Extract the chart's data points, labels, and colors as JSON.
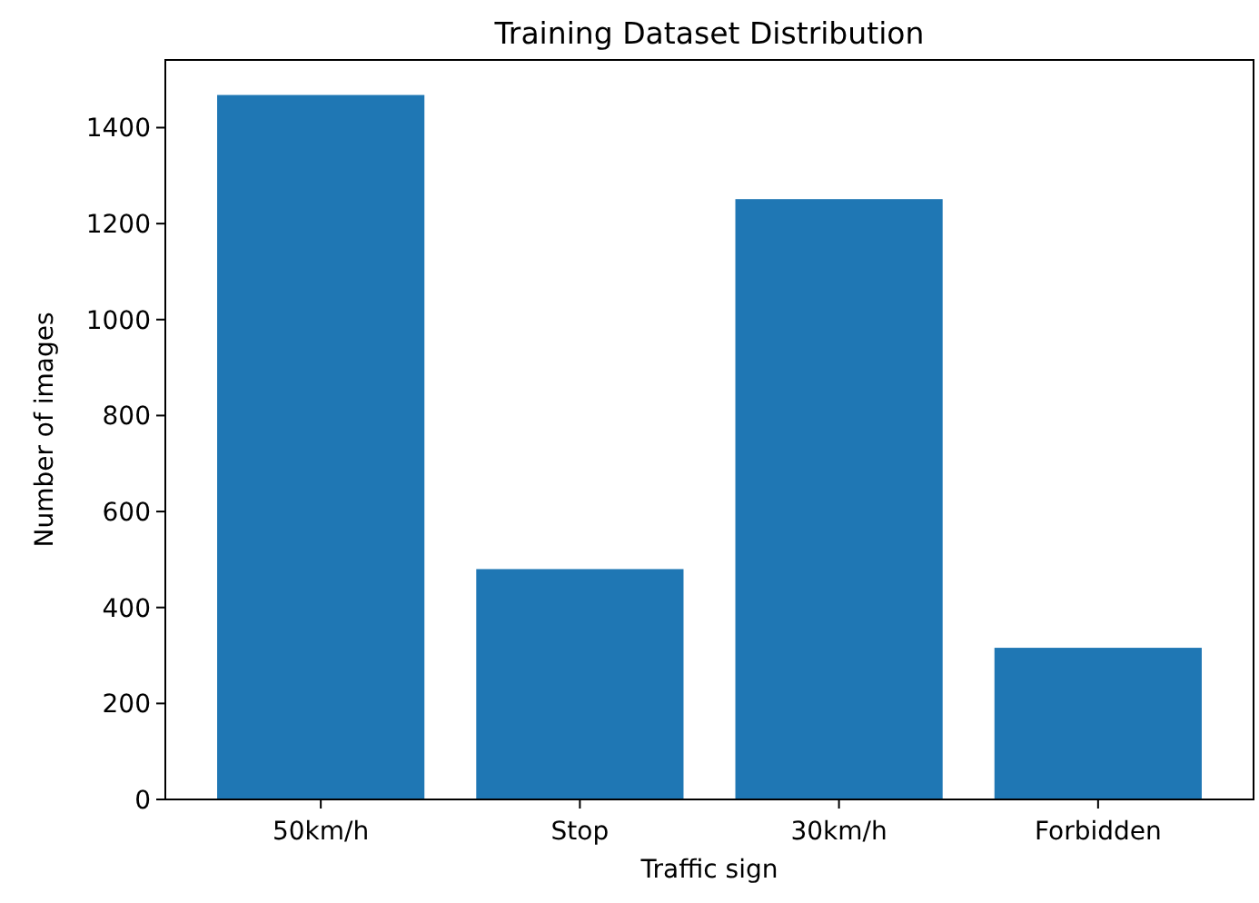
{
  "chart_data": {
    "type": "bar",
    "title": "Training Dataset Distribution",
    "xlabel": "Traffic sign",
    "ylabel": "Number of images",
    "categories": [
      "50km/h",
      "Stop",
      "30km/h",
      "Forbidden"
    ],
    "values": [
      1468,
      480,
      1251,
      316
    ],
    "color": "#1f77b4",
    "ylim": [
      0,
      1541
    ],
    "yticks": [
      0,
      200,
      400,
      600,
      800,
      1000,
      1200,
      1400
    ],
    "grid": false
  }
}
